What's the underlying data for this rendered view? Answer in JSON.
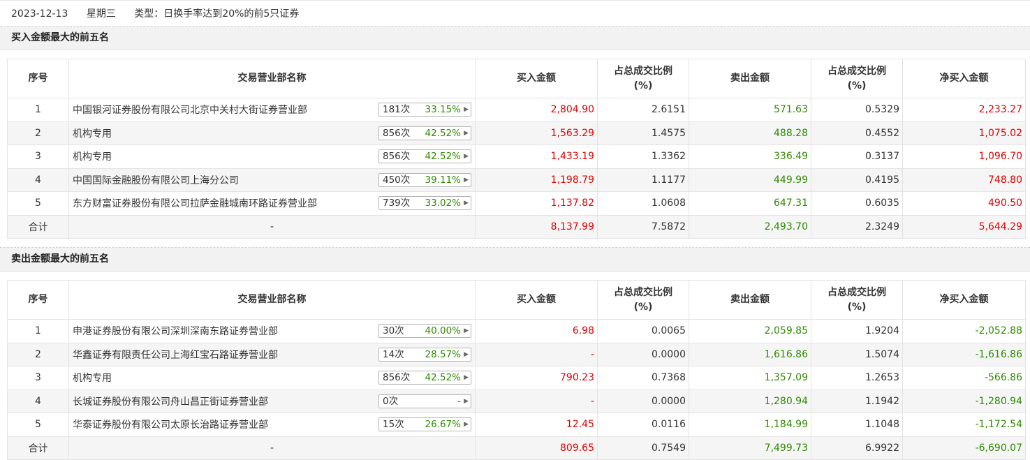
{
  "header": {
    "date": "2023-12-13",
    "weekday": "星期三",
    "type_text": "类型：日换手率达到20%的前5只证券"
  },
  "columns": [
    "序号",
    "交易营业部名称",
    "买入金额",
    "占总成交比例\n(%)",
    "卖出金额",
    "占总成交比例\n(%)",
    "净买入金额"
  ],
  "buy_section": {
    "title": "买入金额最大的前五名",
    "rows": [
      {
        "idx": "1",
        "name": "中国银河证券股份有限公司北京中关村大街证券营业部",
        "count": "181次",
        "rate": "33.15%",
        "buy": "2,804.90",
        "buy_pct": "2.6151",
        "sell": "571.63",
        "sell_pct": "0.5329",
        "net": "2,233.27"
      },
      {
        "idx": "2",
        "name": "机构专用",
        "count": "856次",
        "rate": "42.52%",
        "buy": "1,563.29",
        "buy_pct": "1.4575",
        "sell": "488.28",
        "sell_pct": "0.4552",
        "net": "1,075.02"
      },
      {
        "idx": "3",
        "name": "机构专用",
        "count": "856次",
        "rate": "42.52%",
        "buy": "1,433.19",
        "buy_pct": "1.3362",
        "sell": "336.49",
        "sell_pct": "0.3137",
        "net": "1,096.70"
      },
      {
        "idx": "4",
        "name": "中国国际金融股份有限公司上海分公司",
        "count": "450次",
        "rate": "39.11%",
        "buy": "1,198.79",
        "buy_pct": "1.1177",
        "sell": "449.99",
        "sell_pct": "0.4195",
        "net": "748.80"
      },
      {
        "idx": "5",
        "name": "东方财富证券股份有限公司拉萨金融城南环路证券营业部",
        "count": "739次",
        "rate": "33.02%",
        "buy": "1,137.82",
        "buy_pct": "1.0608",
        "sell": "647.31",
        "sell_pct": "0.6035",
        "net": "490.50"
      }
    ],
    "total": {
      "label": "合计",
      "name": "-",
      "buy": "8,137.99",
      "buy_pct": "7.5872",
      "sell": "2,493.70",
      "sell_pct": "2.3249",
      "net": "5,644.29"
    }
  },
  "sell_section": {
    "title": "卖出金额最大的前五名",
    "rows": [
      {
        "idx": "1",
        "name": "申港证券股份有限公司深圳深南东路证券营业部",
        "count": "30次",
        "rate": "40.00%",
        "buy": "6.98",
        "buy_pct": "0.0065",
        "sell": "2,059.85",
        "sell_pct": "1.9204",
        "net": "-2,052.88"
      },
      {
        "idx": "2",
        "name": "华鑫证券有限责任公司上海红宝石路证券营业部",
        "count": "14次",
        "rate": "28.57%",
        "buy": "-",
        "buy_pct": "0.0000",
        "sell": "1,616.86",
        "sell_pct": "1.5074",
        "net": "-1,616.86"
      },
      {
        "idx": "3",
        "name": "机构专用",
        "count": "856次",
        "rate": "42.52%",
        "buy": "790.23",
        "buy_pct": "0.7368",
        "sell": "1,357.09",
        "sell_pct": "1.2653",
        "net": "-566.86"
      },
      {
        "idx": "4",
        "name": "长城证券股份有限公司舟山昌正街证券营业部",
        "count": "0次",
        "rate": "-",
        "buy": "-",
        "buy_pct": "0.0000",
        "sell": "1,280.94",
        "sell_pct": "1.1942",
        "net": "-1,280.94"
      },
      {
        "idx": "5",
        "name": "华泰证券股份有限公司太原长治路证券营业部",
        "count": "15次",
        "rate": "26.67%",
        "buy": "12.45",
        "buy_pct": "0.0116",
        "sell": "1,184.99",
        "sell_pct": "1.1048",
        "net": "-1,172.54"
      }
    ],
    "total": {
      "label": "合计",
      "name": "-",
      "buy": "809.65",
      "buy_pct": "0.7549",
      "sell": "7,499.73",
      "sell_pct": "6.9922",
      "net": "-6,690.07"
    }
  },
  "colors": {
    "up": "#e30000",
    "down": "#2e8b00"
  }
}
